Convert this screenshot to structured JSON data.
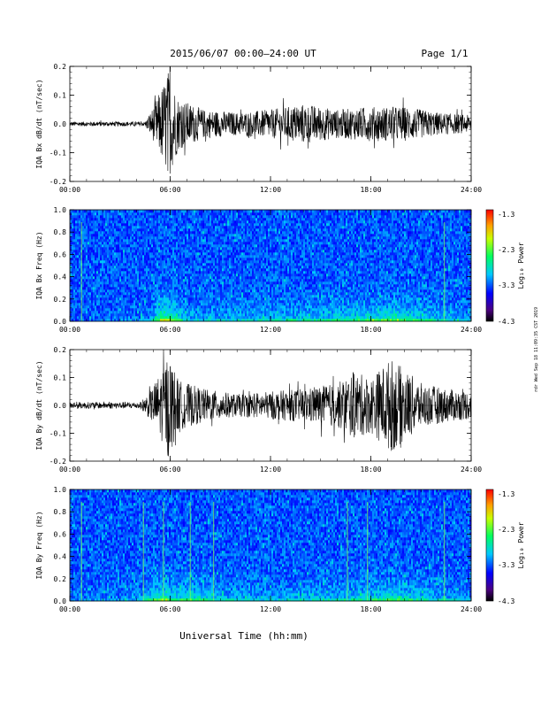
{
  "header": {
    "title": "2015/06/07  00:00–24:00 UT",
    "page": "Page 1/1"
  },
  "footer": {
    "xlabel": "Universal Time (hh:mm)"
  },
  "stamp": "rdr Wed Sep 18 11:09:35 CST 2019",
  "colorbar": {
    "ticks": [
      "-1.3",
      "-2.3",
      "-3.3",
      "-4.3"
    ],
    "label": "Log₁₀ Power"
  },
  "chart_data": [
    {
      "type": "line",
      "ylabel": "IQA Bx dB/dt (nT/sec)",
      "xlim": [
        0,
        24
      ],
      "ylim": [
        -0.2,
        0.2
      ],
      "x_ticks": [
        "00:00",
        "06:00",
        "12:00",
        "18:00",
        "24:00"
      ],
      "y_ticks": [
        "0.2",
        "0.1",
        "0.0",
        "-0.1",
        "-0.2"
      ],
      "envelope": [
        {
          "x": 0.0,
          "amp": 0.008
        },
        {
          "x": 4.5,
          "amp": 0.008
        },
        {
          "x": 5.0,
          "amp": 0.06
        },
        {
          "x": 5.5,
          "amp": 0.13
        },
        {
          "x": 5.9,
          "amp": 0.19
        },
        {
          "x": 6.5,
          "amp": 0.09
        },
        {
          "x": 8.0,
          "amp": 0.05
        },
        {
          "x": 10.0,
          "amp": 0.04
        },
        {
          "x": 12.0,
          "amp": 0.05
        },
        {
          "x": 14.0,
          "amp": 0.07
        },
        {
          "x": 16.0,
          "amp": 0.05
        },
        {
          "x": 18.0,
          "amp": 0.06
        },
        {
          "x": 20.0,
          "amp": 0.06
        },
        {
          "x": 22.0,
          "amp": 0.04
        },
        {
          "x": 24.0,
          "amp": 0.03
        }
      ]
    },
    {
      "type": "heatmap",
      "ylabel": "IQA Bx Freq (Hz)",
      "xlim": [
        0,
        24
      ],
      "ylim": [
        0,
        1
      ],
      "clim": [
        -4.3,
        -1.3
      ],
      "x_ticks": [
        "00:00",
        "06:00",
        "12:00",
        "18:00",
        "24:00"
      ],
      "y_ticks": [
        "1.0",
        "0.8",
        "0.6",
        "0.4",
        "0.2",
        "0.0"
      ],
      "vertical_lines_hr": [
        0.7,
        22.4
      ],
      "activity": [
        {
          "x": 0.0,
          "level": 0.0
        },
        {
          "x": 4.8,
          "level": 0.1
        },
        {
          "x": 5.5,
          "level": 0.7
        },
        {
          "x": 6.2,
          "level": 0.6
        },
        {
          "x": 7.0,
          "level": 0.2
        },
        {
          "x": 12.0,
          "level": 0.25
        },
        {
          "x": 16.0,
          "level": 0.35
        },
        {
          "x": 19.5,
          "level": 0.5
        },
        {
          "x": 22.0,
          "level": 0.3
        },
        {
          "x": 24.0,
          "level": 0.15
        }
      ]
    },
    {
      "type": "line",
      "ylabel": "IQA By dB/dt (nT/sec)",
      "xlim": [
        0,
        24
      ],
      "ylim": [
        -0.2,
        0.2
      ],
      "x_ticks": [
        "00:00",
        "06:00",
        "12:00",
        "18:00",
        "24:00"
      ],
      "y_ticks": [
        "0.2",
        "0.1",
        "0.0",
        "-0.1",
        "-0.2"
      ],
      "envelope": [
        {
          "x": 0.0,
          "amp": 0.012
        },
        {
          "x": 4.2,
          "amp": 0.012
        },
        {
          "x": 4.8,
          "amp": 0.05
        },
        {
          "x": 5.5,
          "amp": 0.13
        },
        {
          "x": 5.9,
          "amp": 0.19
        },
        {
          "x": 6.5,
          "amp": 0.09
        },
        {
          "x": 8.0,
          "amp": 0.06
        },
        {
          "x": 10.0,
          "amp": 0.04
        },
        {
          "x": 12.0,
          "amp": 0.05
        },
        {
          "x": 14.0,
          "amp": 0.06
        },
        {
          "x": 16.0,
          "amp": 0.08
        },
        {
          "x": 17.0,
          "amp": 0.12
        },
        {
          "x": 18.0,
          "amp": 0.1
        },
        {
          "x": 19.2,
          "amp": 0.17
        },
        {
          "x": 21.0,
          "amp": 0.08
        },
        {
          "x": 22.5,
          "amp": 0.06
        },
        {
          "x": 24.0,
          "amp": 0.05
        }
      ]
    },
    {
      "type": "heatmap",
      "ylabel": "IQA By Freq (Hz)",
      "xlim": [
        0,
        24
      ],
      "ylim": [
        0,
        1
      ],
      "clim": [
        -4.3,
        -1.3
      ],
      "x_ticks": [
        "00:00",
        "06:00",
        "12:00",
        "18:00",
        "24:00"
      ],
      "y_ticks": [
        "1.0",
        "0.8",
        "0.6",
        "0.4",
        "0.2",
        "0.0"
      ],
      "vertical_lines_hr": [
        0.7,
        4.4,
        5.6,
        7.2,
        8.6,
        16.6,
        17.8,
        22.4
      ],
      "activity": [
        {
          "x": 0.0,
          "level": 0.05
        },
        {
          "x": 4.2,
          "level": 0.15
        },
        {
          "x": 5.5,
          "level": 0.6
        },
        {
          "x": 6.5,
          "level": 0.4
        },
        {
          "x": 7.5,
          "level": 0.45
        },
        {
          "x": 9.0,
          "level": 0.25
        },
        {
          "x": 12.0,
          "level": 0.2
        },
        {
          "x": 16.5,
          "level": 0.3
        },
        {
          "x": 19.5,
          "level": 0.45
        },
        {
          "x": 22.0,
          "level": 0.25
        },
        {
          "x": 24.0,
          "level": 0.12
        }
      ]
    }
  ]
}
